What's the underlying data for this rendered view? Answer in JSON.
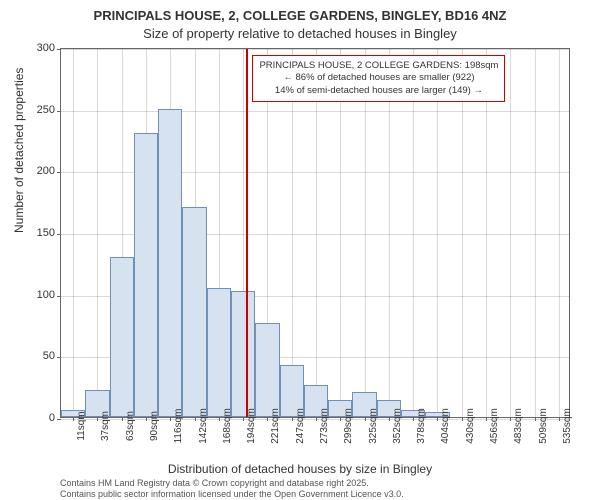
{
  "chart": {
    "type": "histogram",
    "title_line1": "PRINCIPALS HOUSE, 2, COLLEGE GARDENS, BINGLEY, BD16 4NZ",
    "title_line2": "Size of property relative to detached houses in Bingley",
    "title_fontsize": 13,
    "x_axis_label": "Distribution of detached houses by size in Bingley",
    "y_axis_label": "Number of detached properties",
    "label_fontsize": 12,
    "x_categories": [
      "11sqm",
      "37sqm",
      "63sqm",
      "90sqm",
      "116sqm",
      "142sqm",
      "168sqm",
      "194sqm",
      "221sqm",
      "247sqm",
      "273sqm",
      "299sqm",
      "325sqm",
      "352sqm",
      "378sqm",
      "404sqm",
      "430sqm",
      "456sqm",
      "483sqm",
      "509sqm",
      "535sqm"
    ],
    "values": [
      6,
      22,
      130,
      230,
      250,
      170,
      105,
      102,
      76,
      42,
      26,
      14,
      20,
      14,
      6,
      4,
      0,
      0,
      0,
      0,
      0
    ],
    "bar_fill": "#d6e2f0",
    "bar_stroke": "#7090b8",
    "grid_color": "#666666",
    "background_color": "#ffffff",
    "axis_color": "#666666",
    "ylim": [
      0,
      300
    ],
    "ytick_step": 50,
    "y_ticks": [
      0,
      50,
      100,
      150,
      200,
      250,
      300
    ],
    "marker_value_sqm": 198,
    "marker_color": "#cc0000",
    "tick_fontsize": 10
  },
  "annotation": {
    "line1": "PRINCIPALS HOUSE, 2 COLLEGE GARDENS: 198sqm",
    "line2": "← 86% of detached houses are smaller (922)",
    "line3": "14% of semi-detached houses are larger (149) →",
    "border_color": "#cc0000",
    "fontsize": 9.5
  },
  "footer": {
    "line1": "Contains HM Land Registry data © Crown copyright and database right 2025.",
    "line2": "Contains public sector information licensed under the Open Government Licence v3.0.",
    "fontsize": 9,
    "color": "#555555"
  }
}
